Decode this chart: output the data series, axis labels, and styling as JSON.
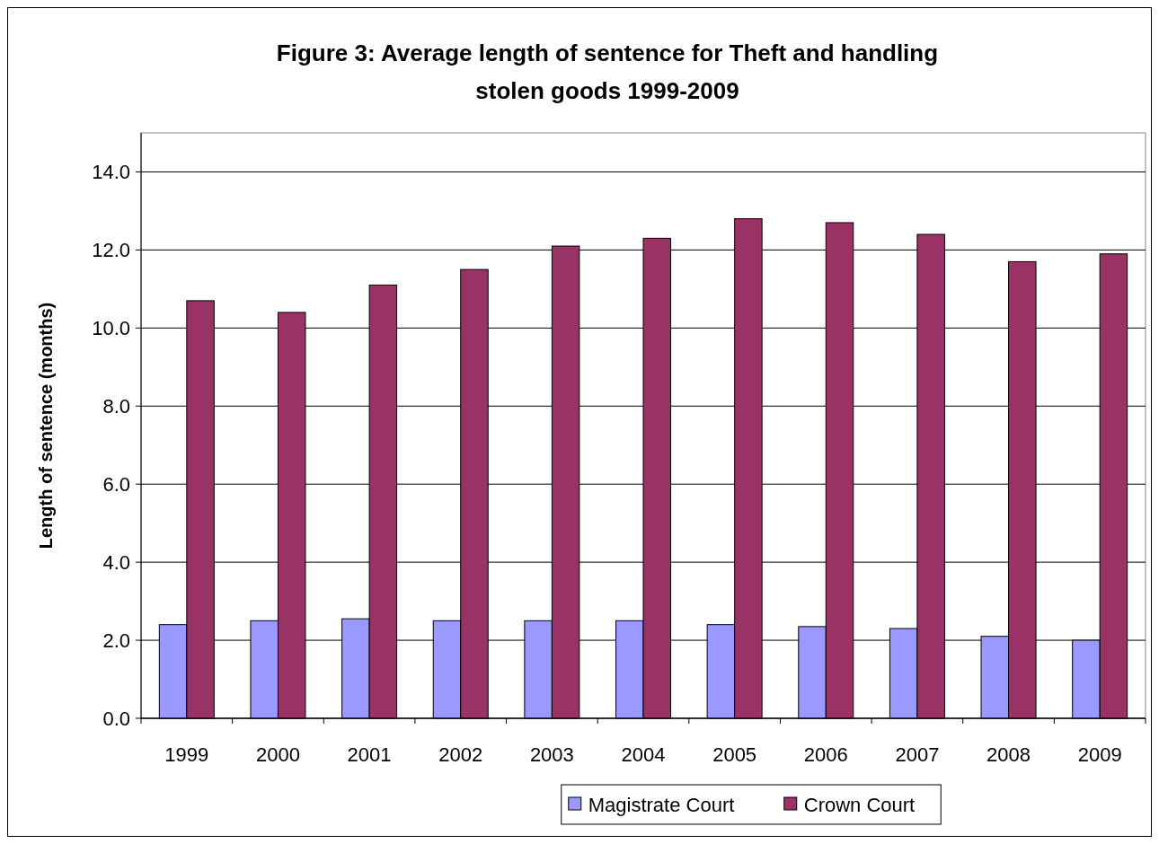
{
  "chart_data": {
    "type": "bar",
    "title": "Figure 3: Average length of sentence for Theft and handling stolen goods 1999-2009",
    "ylabel": "Length of sentence (months)",
    "categories": [
      "1999",
      "2000",
      "2001",
      "2002",
      "2003",
      "2004",
      "2005",
      "2006",
      "2007",
      "2008",
      "2009"
    ],
    "series": [
      {
        "name": "Magistrate Court",
        "color": "#9999ff",
        "values": [
          2.4,
          2.5,
          2.55,
          2.5,
          2.5,
          2.5,
          2.4,
          2.35,
          2.3,
          2.1,
          2.0
        ]
      },
      {
        "name": "Crown Court",
        "color": "#993366",
        "values": [
          10.7,
          10.4,
          11.1,
          11.5,
          12.1,
          12.3,
          12.8,
          12.7,
          12.4,
          11.7,
          11.9
        ]
      }
    ],
    "ylim": [
      0,
      15
    ],
    "yticks": [
      {
        "value": 0,
        "label": "0.0"
      },
      {
        "value": 2,
        "label": "2.0"
      },
      {
        "value": 4,
        "label": "4.0"
      },
      {
        "value": 6,
        "label": "6.0"
      },
      {
        "value": 8,
        "label": "8.0"
      },
      {
        "value": 10,
        "label": "10.0"
      },
      {
        "value": 12,
        "label": "12.0"
      },
      {
        "value": 14,
        "label": "14.0"
      }
    ],
    "grid": "y",
    "legend": "bottom"
  }
}
